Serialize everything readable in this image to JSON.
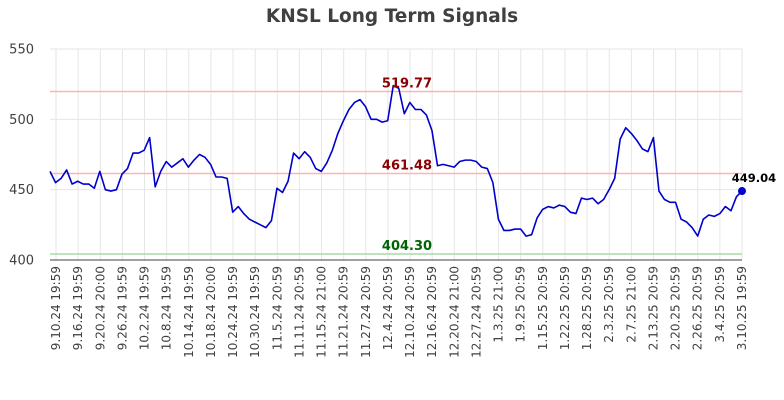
{
  "chart_data": {
    "type": "line",
    "title": "KNSL Long Term Signals",
    "ylim": [
      400,
      550
    ],
    "yticks": [
      400,
      450,
      500,
      550
    ],
    "grid": true,
    "x_tick_labels": [
      "9.10.24 19:59",
      "9.16.24 19:59",
      "9.20.24 20:00",
      "9.26.24 19:59",
      "10.2.24 19:59",
      "10.8.24 19:59",
      "10.14.24 19:59",
      "10.18.24 20:00",
      "10.24.24 19:59",
      "10.30.24 19:59",
      "11.5.24 20:59",
      "11.11.24 20:59",
      "11.15.24 21:00",
      "11.21.24 20:59",
      "11.27.24 20:59",
      "12.4.24 20:59",
      "12.10.24 20:59",
      "12.16.24 20:59",
      "12.20.24 21:00",
      "12.27.24 20:59",
      "1.3.25 21:00",
      "1.9.25 20:59",
      "1.15.25 20:59",
      "1.22.25 20:59",
      "1.28.25 20:59",
      "2.3.25 20:59",
      "2.7.25 21:00",
      "2.13.25 20:59",
      "2.20.25 20:59",
      "2.26.25 20:59",
      "3.4.25 20:59",
      "3.10.25 19:59"
    ],
    "levels": [
      {
        "value": 519.77,
        "label": "519.77",
        "line_color": "#ffb3b3",
        "text_color": "#8b0000"
      },
      {
        "value": 461.48,
        "label": "461.48",
        "line_color": "#ffb3b3",
        "text_color": "#8b0000"
      },
      {
        "value": 404.3,
        "label": "404.30",
        "line_color": "#a8dba8",
        "text_color": "#006400"
      }
    ],
    "series": [
      {
        "color": "#0000cc",
        "values": [
          463,
          455,
          458,
          464,
          454,
          456,
          454,
          454,
          451,
          463,
          450,
          449,
          450,
          461,
          465,
          476,
          476,
          478,
          487,
          452,
          463,
          470,
          466,
          469,
          472,
          466,
          471,
          475,
          473,
          468,
          459,
          459,
          458,
          434,
          438,
          433,
          429,
          427,
          425,
          423,
          428,
          451,
          448,
          456,
          476,
          472,
          477,
          473,
          465,
          463,
          469,
          478,
          490,
          499,
          507,
          512,
          514,
          509,
          500,
          500,
          498,
          499,
          524,
          522,
          504,
          512,
          507,
          507,
          503,
          492,
          467,
          468,
          467,
          466,
          470,
          471,
          471,
          470,
          466,
          465,
          455,
          429,
          421,
          421,
          422,
          422,
          417,
          418,
          430,
          436,
          438,
          437,
          439,
          438,
          434,
          433,
          444,
          443,
          444,
          440,
          443,
          450,
          458,
          486,
          494,
          490,
          485,
          479,
          477,
          487,
          449,
          443,
          441,
          441,
          429,
          427,
          423,
          417,
          429,
          432,
          431,
          433,
          438,
          435,
          445,
          449.04
        ]
      }
    ],
    "last_value_label": "449.04"
  }
}
